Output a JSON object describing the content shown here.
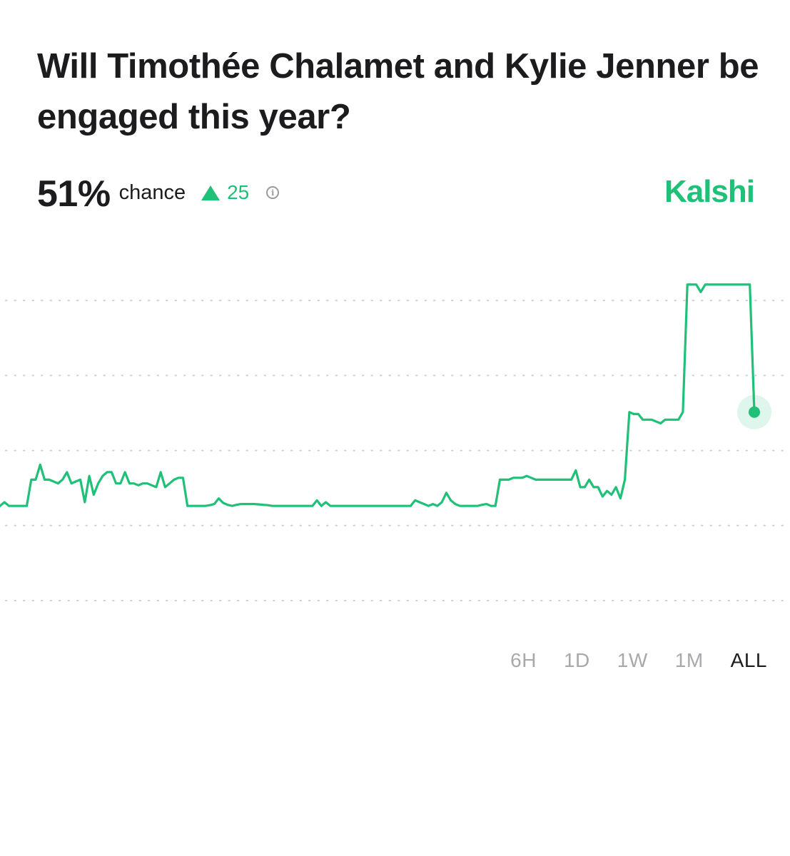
{
  "market": {
    "question": "Will Timothée Chalamet and Kylie Jenner be engaged this year?",
    "percent": "51%",
    "chance_label": "chance",
    "change": "25",
    "brand": "Kalshi"
  },
  "ranges": [
    "6H",
    "1D",
    "1W",
    "1M",
    "ALL"
  ],
  "active_range": "ALL",
  "colors": {
    "line": "#1fc078",
    "grid": "#cfcfd4",
    "text": "#1c1c1e",
    "muted": "#a8a8ad"
  },
  "chart_data": {
    "type": "line",
    "ylim": [
      0,
      100
    ],
    "grid": true,
    "y_gridlines": [
      0,
      20,
      40,
      60,
      80
    ],
    "series": [
      {
        "values": [
          26,
          27,
          26,
          26,
          26,
          26,
          26,
          33,
          33,
          37,
          33,
          33,
          32.5,
          32,
          33,
          35,
          32,
          32.5,
          33,
          27,
          34,
          29,
          32,
          34,
          35,
          35,
          32,
          32,
          35,
          32,
          32,
          31.5,
          32,
          32,
          31.5,
          31,
          35,
          31,
          32,
          33,
          33.5,
          33.5,
          26,
          26,
          26,
          26,
          26,
          26.2,
          26.5,
          28,
          26.8,
          26.3,
          26,
          26.3,
          26.5,
          26.5,
          26.5,
          26.5,
          26.4,
          26.3,
          26.2,
          26,
          26,
          26,
          26,
          26,
          26,
          26,
          26,
          26,
          26,
          27.5,
          26,
          27,
          26,
          26,
          26,
          26,
          26,
          26,
          26,
          26,
          26,
          26,
          26,
          26,
          26,
          26,
          26,
          26,
          26,
          26,
          26,
          27.5,
          27,
          26.5,
          26,
          26.5,
          26,
          27,
          29.5,
          27.5,
          26.5,
          26,
          26,
          26,
          26,
          26,
          26.3,
          26.5,
          26,
          26,
          33,
          33,
          33,
          33.5,
          33.5,
          33.5,
          34,
          33.5,
          33,
          33,
          33,
          33,
          33,
          33,
          33,
          33,
          33,
          35.5,
          31,
          31,
          33,
          31,
          31,
          28.5,
          30,
          29,
          31,
          28,
          33,
          51,
          50.5,
          50.5,
          49,
          49,
          49,
          48.5,
          48,
          49,
          49,
          49,
          49,
          51,
          85,
          85,
          85,
          83,
          85,
          85,
          85,
          85,
          85,
          85,
          85,
          85,
          85,
          85,
          85,
          51
        ]
      }
    ]
  }
}
